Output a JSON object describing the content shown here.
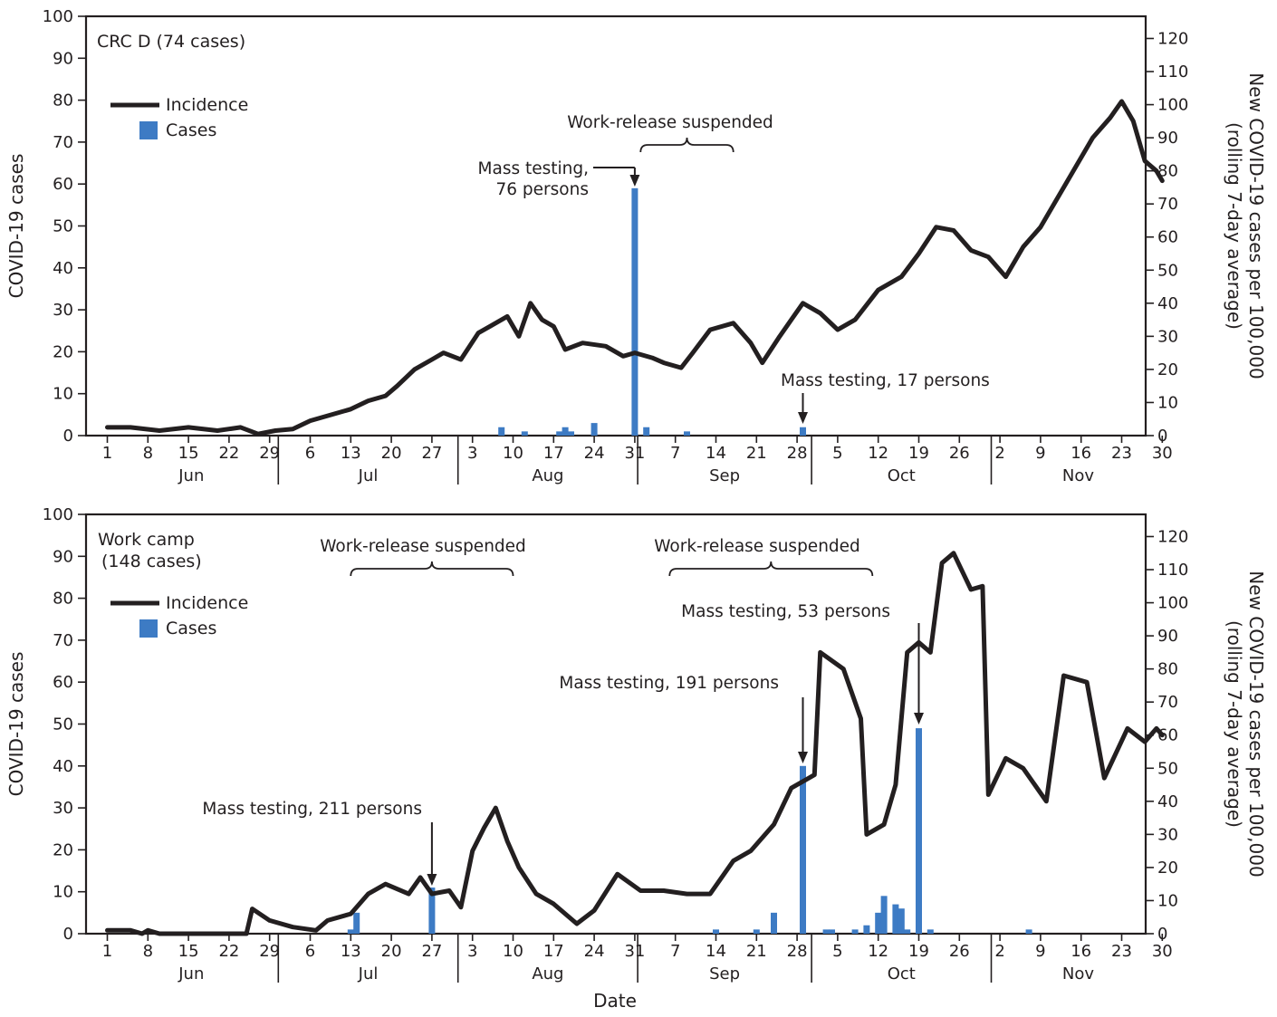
{
  "colors": {
    "cases": "#3d7bc4",
    "incidence": "#231f20",
    "axis": "#231f20"
  },
  "shared": {
    "xlabel": "Date",
    "left_ylabel": "COVID-19 cases",
    "right_ylabel_line1": "New COVID-19 cases per 100,000",
    "right_ylabel_line2": "(rolling 7-day average)",
    "x_tick_labels": [
      "1",
      "8",
      "15",
      "22",
      "29",
      "6",
      "13",
      "20",
      "27",
      "3",
      "10",
      "17",
      "24",
      "31",
      "7",
      "14",
      "21",
      "28",
      "5",
      "12",
      "19",
      "26",
      "2",
      "9",
      "16",
      "23",
      "30"
    ],
    "months": [
      "Jun",
      "Jul",
      "Aug",
      "Sep",
      "Oct",
      "Nov"
    ],
    "left_ticks": [
      "0",
      "10",
      "20",
      "30",
      "40",
      "50",
      "60",
      "70",
      "80",
      "90",
      "100"
    ],
    "right_ticks": [
      "0",
      "10",
      "20",
      "30",
      "40",
      "50",
      "60",
      "70",
      "80",
      "90",
      "100",
      "110",
      "120"
    ]
  },
  "chart_data": [
    {
      "type": "bar+line",
      "title": "CRC D (74 cases)",
      "x_range": [
        "2020-06-01",
        "2020-11-30"
      ],
      "left_ylim": [
        0,
        100
      ],
      "right_ylim": [
        0,
        126.7
      ],
      "legend": [
        "Incidence",
        "Cases"
      ],
      "legend_position": "top-left",
      "cases": [
        {
          "date": "2020-08-08",
          "value": 2
        },
        {
          "date": "2020-08-12",
          "value": 1
        },
        {
          "date": "2020-08-18",
          "value": 1
        },
        {
          "date": "2020-08-19",
          "value": 2
        },
        {
          "date": "2020-08-20",
          "value": 1
        },
        {
          "date": "2020-08-24",
          "value": 3
        },
        {
          "date": "2020-08-31",
          "value": 59
        },
        {
          "date": "2020-09-02",
          "value": 2
        },
        {
          "date": "2020-09-09",
          "value": 1
        },
        {
          "date": "2020-09-29",
          "value": 2
        }
      ],
      "incidence": [
        [
          "2020-06-01",
          2.5
        ],
        [
          "2020-06-05",
          2.5
        ],
        [
          "2020-06-10",
          1.5
        ],
        [
          "2020-06-15",
          2.5
        ],
        [
          "2020-06-20",
          1.5
        ],
        [
          "2020-06-24",
          2.5
        ],
        [
          "2020-06-27",
          0.5
        ],
        [
          "2020-06-30",
          1.5
        ],
        [
          "2020-07-03",
          2
        ],
        [
          "2020-07-06",
          4.5
        ],
        [
          "2020-07-09",
          6
        ],
        [
          "2020-07-13",
          8
        ],
        [
          "2020-07-16",
          10.5
        ],
        [
          "2020-07-19",
          12
        ],
        [
          "2020-07-21",
          15
        ],
        [
          "2020-07-24",
          20
        ],
        [
          "2020-07-27",
          23
        ],
        [
          "2020-07-29",
          25
        ],
        [
          "2020-08-01",
          23
        ],
        [
          "2020-08-04",
          31
        ],
        [
          "2020-08-06",
          33
        ],
        [
          "2020-08-09",
          36
        ],
        [
          "2020-08-11",
          30
        ],
        [
          "2020-08-13",
          40
        ],
        [
          "2020-08-15",
          35
        ],
        [
          "2020-08-17",
          33
        ],
        [
          "2020-08-19",
          26
        ],
        [
          "2020-08-22",
          28
        ],
        [
          "2020-08-26",
          27
        ],
        [
          "2020-08-29",
          24
        ],
        [
          "2020-08-31",
          25
        ],
        [
          "2020-09-03",
          23.5
        ],
        [
          "2020-09-05",
          22
        ],
        [
          "2020-09-08",
          20.5
        ],
        [
          "2020-09-10",
          25
        ],
        [
          "2020-09-13",
          32
        ],
        [
          "2020-09-17",
          34
        ],
        [
          "2020-09-20",
          28
        ],
        [
          "2020-09-22",
          22
        ],
        [
          "2020-09-25",
          30
        ],
        [
          "2020-09-27",
          35
        ],
        [
          "2020-09-29",
          40
        ],
        [
          "2020-10-02",
          37
        ],
        [
          "2020-10-05",
          32
        ],
        [
          "2020-10-08",
          35
        ],
        [
          "2020-10-12",
          44
        ],
        [
          "2020-10-16",
          48
        ],
        [
          "2020-10-19",
          55
        ],
        [
          "2020-10-22",
          63
        ],
        [
          "2020-10-25",
          62
        ],
        [
          "2020-10-28",
          56
        ],
        [
          "2020-10-31",
          54
        ],
        [
          "2020-11-03",
          48
        ],
        [
          "2020-11-06",
          57
        ],
        [
          "2020-11-09",
          63
        ],
        [
          "2020-11-12",
          72
        ],
        [
          "2020-11-15",
          81
        ],
        [
          "2020-11-18",
          90
        ],
        [
          "2020-11-21",
          96
        ],
        [
          "2020-11-23",
          101
        ],
        [
          "2020-11-25",
          95
        ],
        [
          "2020-11-27",
          83
        ],
        [
          "2020-11-29",
          80
        ],
        [
          "2020-11-30",
          77
        ]
      ],
      "annotations": [
        {
          "text_lines": [
            "Mass testing,",
            "76 persons"
          ],
          "date": "2020-08-31"
        },
        {
          "text_lines": [
            "Mass testing, 17 persons"
          ],
          "date": "2020-09-29"
        },
        {
          "text_lines": [
            "Work-release suspended"
          ],
          "from": "2020-09-01",
          "to": "2020-09-17"
        }
      ]
    },
    {
      "type": "bar+line",
      "title_line1": "Work camp",
      "title_line2": "(148 cases)",
      "x_range": [
        "2020-06-01",
        "2020-11-30"
      ],
      "left_ylim": [
        0,
        100
      ],
      "right_ylim": [
        0,
        126.7
      ],
      "legend": [
        "Incidence",
        "Cases"
      ],
      "legend_position": "top-left",
      "cases": [
        {
          "date": "2020-07-13",
          "value": 1
        },
        {
          "date": "2020-07-14",
          "value": 5
        },
        {
          "date": "2020-07-27",
          "value": 11
        },
        {
          "date": "2020-09-14",
          "value": 1
        },
        {
          "date": "2020-09-21",
          "value": 1
        },
        {
          "date": "2020-09-24",
          "value": 5
        },
        {
          "date": "2020-09-29",
          "value": 40
        },
        {
          "date": "2020-10-03",
          "value": 1
        },
        {
          "date": "2020-10-04",
          "value": 1
        },
        {
          "date": "2020-10-08",
          "value": 1
        },
        {
          "date": "2020-10-10",
          "value": 2
        },
        {
          "date": "2020-10-12",
          "value": 5
        },
        {
          "date": "2020-10-13",
          "value": 9
        },
        {
          "date": "2020-10-15",
          "value": 7
        },
        {
          "date": "2020-10-16",
          "value": 6
        },
        {
          "date": "2020-10-17",
          "value": 1
        },
        {
          "date": "2020-10-19",
          "value": 49
        },
        {
          "date": "2020-10-21",
          "value": 1
        },
        {
          "date": "2020-11-07",
          "value": 1
        }
      ],
      "incidence": [
        [
          "2020-06-01",
          1
        ],
        [
          "2020-06-05",
          1
        ],
        [
          "2020-06-07",
          0
        ],
        [
          "2020-06-08",
          1
        ],
        [
          "2020-06-10",
          0
        ],
        [
          "2020-06-25",
          0
        ],
        [
          "2020-06-26",
          7.5
        ],
        [
          "2020-06-29",
          4
        ],
        [
          "2020-07-03",
          2
        ],
        [
          "2020-07-07",
          1
        ],
        [
          "2020-07-09",
          4
        ],
        [
          "2020-07-13",
          6
        ],
        [
          "2020-07-16",
          12
        ],
        [
          "2020-07-19",
          15
        ],
        [
          "2020-07-23",
          12
        ],
        [
          "2020-07-25",
          17
        ],
        [
          "2020-07-27",
          12
        ],
        [
          "2020-07-30",
          13
        ],
        [
          "2020-08-01",
          8
        ],
        [
          "2020-08-03",
          25
        ],
        [
          "2020-08-05",
          32
        ],
        [
          "2020-08-07",
          38
        ],
        [
          "2020-08-09",
          28
        ],
        [
          "2020-08-11",
          20
        ],
        [
          "2020-08-14",
          12
        ],
        [
          "2020-08-17",
          9
        ],
        [
          "2020-08-21",
          3
        ],
        [
          "2020-08-24",
          7
        ],
        [
          "2020-08-28",
          18
        ],
        [
          "2020-09-01",
          13
        ],
        [
          "2020-09-05",
          13
        ],
        [
          "2020-09-09",
          12
        ],
        [
          "2020-09-13",
          12
        ],
        [
          "2020-09-17",
          22
        ],
        [
          "2020-09-20",
          25
        ],
        [
          "2020-09-24",
          33
        ],
        [
          "2020-09-27",
          44
        ],
        [
          "2020-10-01",
          48
        ],
        [
          "2020-10-02",
          85
        ],
        [
          "2020-10-06",
          80
        ],
        [
          "2020-10-09",
          65
        ],
        [
          "2020-10-10",
          30
        ],
        [
          "2020-10-13",
          33
        ],
        [
          "2020-10-15",
          45
        ],
        [
          "2020-10-17",
          85
        ],
        [
          "2020-10-19",
          88
        ],
        [
          "2020-10-21",
          85
        ],
        [
          "2020-10-23",
          112
        ],
        [
          "2020-10-25",
          115
        ],
        [
          "2020-10-28",
          104
        ],
        [
          "2020-10-30",
          105
        ],
        [
          "2020-10-31",
          42
        ],
        [
          "2020-11-03",
          53
        ],
        [
          "2020-11-06",
          50
        ],
        [
          "2020-11-10",
          40
        ],
        [
          "2020-11-13",
          78
        ],
        [
          "2020-11-17",
          76
        ],
        [
          "2020-11-20",
          47
        ],
        [
          "2020-11-24",
          62
        ],
        [
          "2020-11-27",
          58
        ],
        [
          "2020-11-29",
          62
        ],
        [
          "2020-11-30",
          60
        ]
      ],
      "annotations": [
        {
          "text_lines": [
            "Mass testing, 211 persons"
          ],
          "date": "2020-07-27"
        },
        {
          "text_lines": [
            "Mass testing, 191 persons"
          ],
          "date": "2020-09-29"
        },
        {
          "text_lines": [
            "Mass testing, 53 persons"
          ],
          "date": "2020-10-19"
        },
        {
          "text_lines": [
            "Work-release suspended"
          ],
          "from": "2020-07-13",
          "to": "2020-08-10"
        },
        {
          "text_lines": [
            "Work-release suspended"
          ],
          "from": "2020-09-06",
          "to": "2020-10-11"
        }
      ]
    }
  ]
}
